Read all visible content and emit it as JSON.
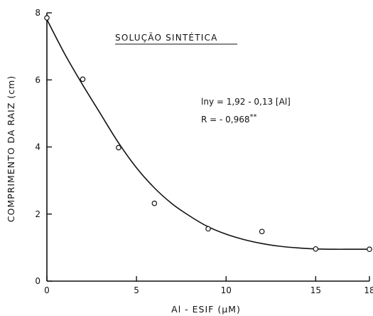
{
  "chart_data": {
    "type": "scatter",
    "title": "SOLUÇÃO SINTÉTICA",
    "xlabel": "Al - ESIF (µM)",
    "ylabel": "COMPRIMENTO DA RAIZ (cm)",
    "xlim": [
      0,
      18
    ],
    "ylim": [
      0,
      8
    ],
    "x_ticks": [
      0,
      5,
      10,
      15,
      18
    ],
    "x_tick_labels": [
      "0",
      "5",
      "10",
      "15",
      "18"
    ],
    "y_ticks": [
      0,
      2,
      4,
      6,
      8
    ],
    "y_tick_labels": [
      "0",
      "2",
      "4",
      "6",
      "8"
    ],
    "grid": false,
    "series": [
      {
        "points": [
          {
            "x": 0,
            "y": 7.85
          },
          {
            "x": 2,
            "y": 6.02
          },
          {
            "x": 4,
            "y": 3.98
          },
          {
            "x": 6,
            "y": 2.32
          },
          {
            "x": 9,
            "y": 1.56
          },
          {
            "x": 12,
            "y": 1.48
          },
          {
            "x": 15,
            "y": 0.96
          },
          {
            "x": 18,
            "y": 0.95
          }
        ]
      }
    ],
    "fit_curve": [
      {
        "x": 0,
        "y": 7.8
      },
      {
        "x": 1,
        "y": 6.77
      },
      {
        "x": 2,
        "y": 5.85
      },
      {
        "x": 3,
        "y": 4.98
      },
      {
        "x": 4,
        "y": 4.12
      },
      {
        "x": 5,
        "y": 3.38
      },
      {
        "x": 6,
        "y": 2.78
      },
      {
        "x": 7,
        "y": 2.3
      },
      {
        "x": 8,
        "y": 1.93
      },
      {
        "x": 9,
        "y": 1.62
      },
      {
        "x": 10,
        "y": 1.4
      },
      {
        "x": 11,
        "y": 1.24
      },
      {
        "x": 12,
        "y": 1.12
      },
      {
        "x": 13,
        "y": 1.04
      },
      {
        "x": 14,
        "y": 0.99
      },
      {
        "x": 15,
        "y": 0.96
      },
      {
        "x": 16,
        "y": 0.95
      },
      {
        "x": 17,
        "y": 0.95
      },
      {
        "x": 18,
        "y": 0.95
      }
    ],
    "annotations": {
      "equation": "lny = 1,92 - 0,13 [Al]",
      "r_label": "R = - 0,968",
      "r_significance": "**"
    }
  }
}
